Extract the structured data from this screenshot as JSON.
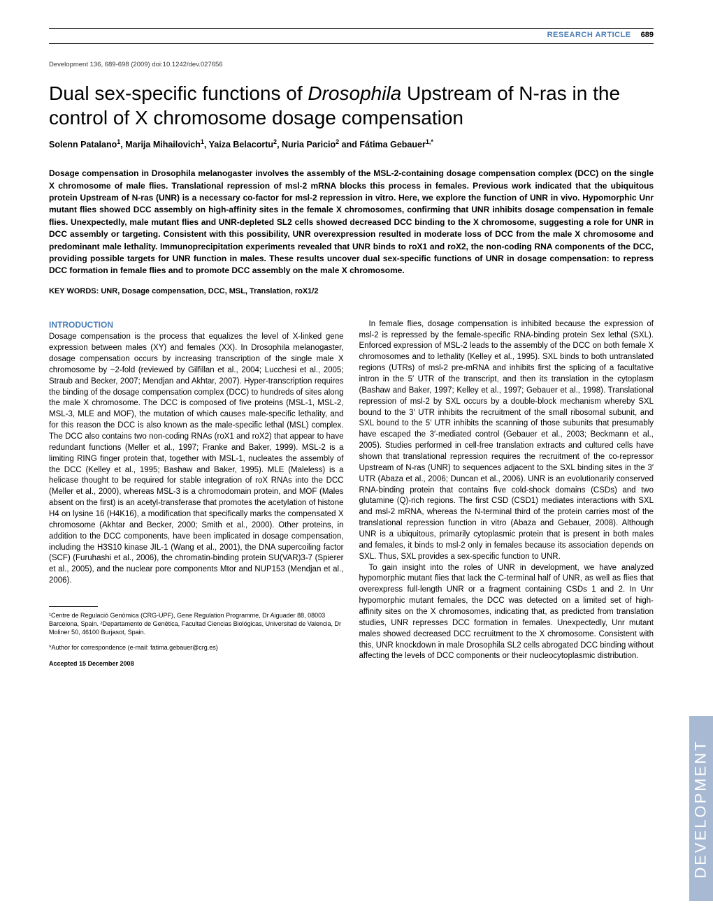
{
  "header": {
    "article_type": "RESEARCH ARTICLE",
    "page_number": "689"
  },
  "citation": "Development 136, 689-698 (2009) doi:10.1242/dev.027656",
  "title_parts": {
    "pre": "Dual sex-specific functions of ",
    "italic1": "Drosophila",
    "post": " Upstream of N-ras in the control of X chromosome dosage compensation"
  },
  "authors": {
    "a1": "Solenn Patalano",
    "s1": "1",
    "a2": "Marija Mihailovich",
    "s2": "1",
    "a3": "Yaiza Belacortu",
    "s3": "2",
    "a4": "Nuria Paricio",
    "s4": "2",
    "a5": "Fátima Gebauer",
    "s5": "1,*"
  },
  "abstract": "Dosage compensation in Drosophila melanogaster involves the assembly of the MSL-2-containing dosage compensation complex (DCC) on the single X chromosome of male flies. Translational repression of msl-2 mRNA blocks this process in females. Previous work indicated that the ubiquitous protein Upstream of N-ras (UNR) is a necessary co-factor for msl-2 repression in vitro. Here, we explore the function of UNR in vivo. Hypomorphic Unr mutant flies showed DCC assembly on high-affinity sites in the female X chromosomes, confirming that UNR inhibits dosage compensation in female flies. Unexpectedly, male mutant flies and UNR-depleted SL2 cells showed decreased DCC binding to the X chromosome, suggesting a role for UNR in DCC assembly or targeting. Consistent with this possibility, UNR overexpression resulted in moderate loss of DCC from the male X chromosome and predominant male lethality. Immunoprecipitation experiments revealed that UNR binds to roX1 and roX2, the non-coding RNA components of the DCC, providing possible targets for UNR function in males. These results uncover dual sex-specific functions of UNR in dosage compensation: to repress DCC formation in female flies and to promote DCC assembly on the male X chromosome.",
  "keywords": "KEY WORDS: UNR, Dosage compensation, DCC, MSL, Translation, roX1/2",
  "section_head": "INTRODUCTION",
  "col1_p1": "Dosage compensation is the process that equalizes the level of X-linked gene expression between males (XY) and females (XX). In Drosophila melanogaster, dosage compensation occurs by increasing transcription of the single male X chromosome by ~2-fold (reviewed by Gilfillan et al., 2004; Lucchesi et al., 2005; Straub and Becker, 2007; Mendjan and Akhtar, 2007). Hyper-transcription requires the binding of the dosage compensation complex (DCC) to hundreds of sites along the male X chromosome. The DCC is composed of five proteins (MSL-1, MSL-2, MSL-3, MLE and MOF), the mutation of which causes male-specific lethality, and for this reason the DCC is also known as the male-specific lethal (MSL) complex. The DCC also contains two non-coding RNAs (roX1 and roX2) that appear to have redundant functions (Meller et al., 1997; Franke and Baker, 1999). MSL-2 is a limiting RING finger protein that, together with MSL-1, nucleates the assembly of the DCC (Kelley et al., 1995; Bashaw and Baker, 1995). MLE (Maleless) is a helicase thought to be required for stable integration of roX RNAs into the DCC (Meller et al., 2000), whereas MSL-3 is a chromodomain protein, and MOF (Males absent on the first) is an acetyl-transferase that promotes the acetylation of histone H4 on lysine 16 (H4K16), a modification that specifically marks the compensated X chromosome (Akhtar and Becker, 2000; Smith et al., 2000). Other proteins, in addition to the DCC components, have been implicated in dosage compensation, including the H3S10 kinase JIL-1 (Wang et al., 2001), the DNA supercoiling factor (SCF) (Furuhashi et al., 2006), the chromatin-binding protein SU(VAR)3-7 (Spierer et al., 2005), and the nuclear pore components Mtor and NUP153 (Mendjan et al., 2006).",
  "affiliations": "¹Centre de Regulació Genòmica (CRG-UPF), Gene Regulation Programme, Dr Aiguader 88, 08003 Barcelona, Spain. ²Departamento de Genética, Facultad Ciencias Biológicas, Universitad de Valencia, Dr Moliner 50, 46100 Burjasot, Spain.",
  "correspondence": "*Author for correspondence (e-mail: fatima.gebauer@crg.es)",
  "accepted": "Accepted 15 December 2008",
  "col2_p1": "In female flies, dosage compensation is inhibited because the expression of msl-2 is repressed by the female-specific RNA-binding protein Sex lethal (SXL). Enforced expression of MSL-2 leads to the assembly of the DCC on both female X chromosomes and to lethality (Kelley et al., 1995). SXL binds to both untranslated regions (UTRs) of msl-2 pre-mRNA and inhibits first the splicing of a facultative intron in the 5′ UTR of the transcript, and then its translation in the cytoplasm (Bashaw and Baker, 1997; Kelley et al., 1997; Gebauer et al., 1998). Translational repression of msl-2 by SXL occurs by a double-block mechanism whereby SXL bound to the 3′ UTR inhibits the recruitment of the small ribosomal subunit, and SXL bound to the 5′ UTR inhibits the scanning of those subunits that presumably have escaped the 3′-mediated control (Gebauer et al., 2003; Beckmann et al., 2005). Studies performed in cell-free translation extracts and cultured cells have shown that translational repression requires the recruitment of the co-repressor Upstream of N-ras (UNR) to sequences adjacent to the SXL binding sites in the 3′ UTR (Abaza et al., 2006; Duncan et al., 2006). UNR is an evolutionarily conserved RNA-binding protein that contains five cold-shock domains (CSDs) and two glutamine (Q)-rich regions. The first CSD (CSD1) mediates interactions with SXL and msl-2 mRNA, whereas the N-terminal third of the protein carries most of the translational repression function in vitro (Abaza and Gebauer, 2008). Although UNR is a ubiquitous, primarily cytoplasmic protein that is present in both males and females, it binds to msl-2 only in females because its association depends on SXL. Thus, SXL provides a sex-specific function to UNR.",
  "col2_p2": "To gain insight into the roles of UNR in development, we have analyzed hypomorphic mutant flies that lack the C-terminal half of UNR, as well as flies that overexpress full-length UNR or a fragment containing CSDs 1 and 2. In Unr hypomorphic mutant females, the DCC was detected on a limited set of high-affinity sites on the X chromosomes, indicating that, as predicted from translation studies, UNR represses DCC formation in females. Unexpectedly, Unr mutant males showed decreased DCC recruitment to the X chromosome. Consistent with this, UNR knockdown in male Drosophila SL2 cells abrogated DCC binding without affecting the levels of DCC components or their nucleocytoplasmic distribution.",
  "side_tab": "DEVELOPMENT",
  "colors": {
    "accent": "#4a7db5",
    "side_bg": "#a8b9d4",
    "side_text": "#ffffff"
  }
}
